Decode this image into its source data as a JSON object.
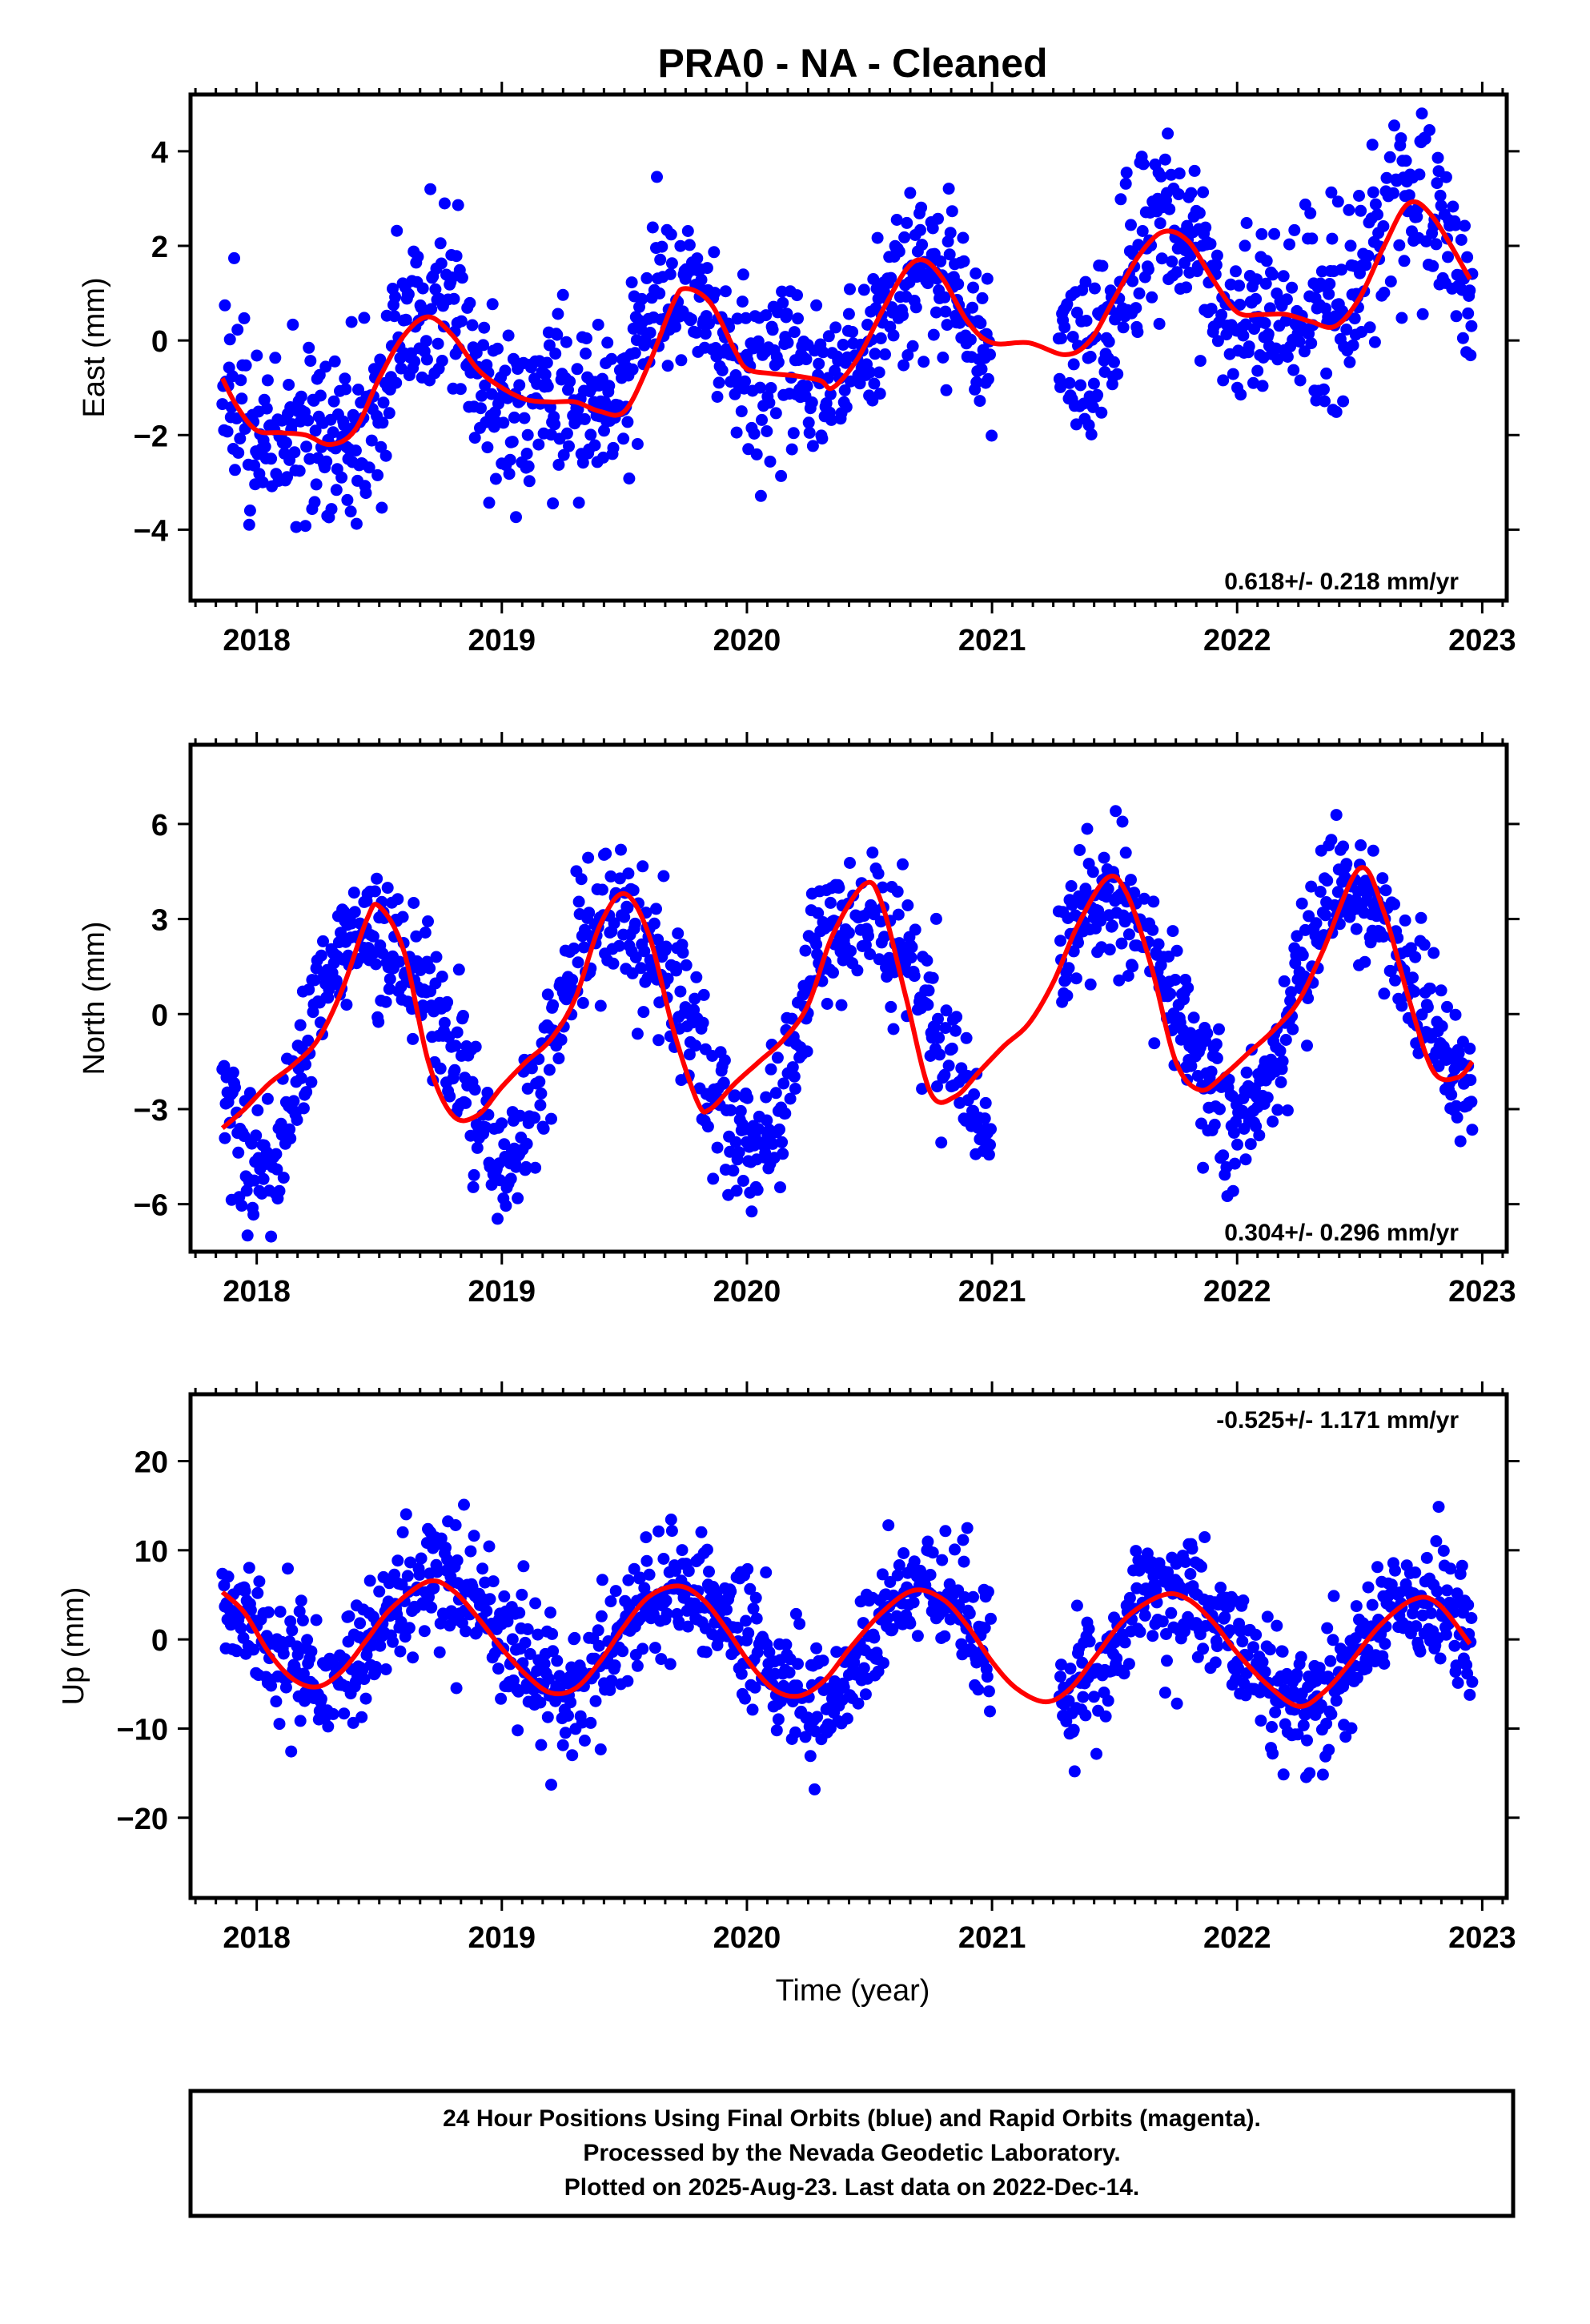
{
  "chart_data": {
    "type": "scatter",
    "title": "PRA0  - NA - Cleaned",
    "x_tick_labels": [
      "2018",
      "2019",
      "2020",
      "2021",
      "2022",
      "2023"
    ],
    "x_ticks": [
      2018,
      2019,
      2020,
      2021,
      2022,
      2023
    ],
    "xlabel": "Time (year)",
    "xlim": [
      2017.73,
      2023.1
    ],
    "data_gap": [
      2021.0,
      2021.27
    ],
    "colors": {
      "points": "#0000ff",
      "fit": "#ff0000",
      "axis": "#000000"
    },
    "panels": [
      {
        "ylabel": "East (mm)",
        "ylim": [
          -5.5,
          5.2
        ],
        "y_ticks": [
          -4,
          -2,
          0,
          2,
          4
        ],
        "y_tick_labels": [
          "−4",
          "−2",
          "0",
          "2",
          "4"
        ],
        "rate": "0.618+/- 0.218 mm/yr",
        "rate_position": "bottom-right",
        "model": {
          "offset": 0.1,
          "trend": 0.618,
          "annual_amp": 1.1,
          "annual_peak": 0.72,
          "semiannual_amp": 0.45,
          "semiannual_peak": 0.2,
          "scatter": 0.95
        },
        "series": [
          {
            "values": [
              [
                2017.86,
                -0.8
              ],
              [
                2017.92,
                -1.4
              ],
              [
                2018.0,
                -1.9
              ],
              [
                2018.1,
                -1.95
              ],
              [
                2018.2,
                -2.0
              ],
              [
                2018.3,
                -2.2
              ],
              [
                2018.4,
                -1.9
              ],
              [
                2018.5,
                -0.8
              ],
              [
                2018.6,
                0.1
              ],
              [
                2018.7,
                0.5
              ],
              [
                2018.8,
                0.1
              ],
              [
                2018.9,
                -0.6
              ],
              [
                2019.0,
                -1.0
              ],
              [
                2019.1,
                -1.25
              ],
              [
                2019.2,
                -1.3
              ],
              [
                2019.3,
                -1.3
              ],
              [
                2019.4,
                -1.5
              ],
              [
                2019.5,
                -1.5
              ],
              [
                2019.6,
                -0.5
              ],
              [
                2019.7,
                0.8
              ],
              [
                2019.75,
                1.1
              ],
              [
                2019.85,
                0.8
              ],
              [
                2019.95,
                -0.2
              ],
              [
                2020.0,
                -0.6
              ],
              [
                2020.1,
                -0.7
              ],
              [
                2020.2,
                -0.75
              ],
              [
                2020.3,
                -0.85
              ],
              [
                2020.35,
                -1.0
              ],
              [
                2020.45,
                -0.4
              ],
              [
                2020.55,
                0.6
              ],
              [
                2020.65,
                1.5
              ],
              [
                2020.72,
                1.7
              ],
              [
                2020.8,
                1.3
              ],
              [
                2020.9,
                0.4
              ],
              [
                2021.0,
                -0.05
              ],
              [
                2021.15,
                -0.05
              ],
              [
                2021.3,
                -0.3
              ],
              [
                2021.4,
                0.0
              ],
              [
                2021.5,
                0.9
              ],
              [
                2021.6,
                1.8
              ],
              [
                2021.7,
                2.3
              ],
              [
                2021.8,
                2.1
              ],
              [
                2021.9,
                1.3
              ],
              [
                2022.0,
                0.6
              ],
              [
                2022.1,
                0.55
              ],
              [
                2022.2,
                0.55
              ],
              [
                2022.3,
                0.4
              ],
              [
                2022.4,
                0.3
              ],
              [
                2022.5,
                0.9
              ],
              [
                2022.6,
                2.0
              ],
              [
                2022.7,
                2.9
              ],
              [
                2022.8,
                2.6
              ],
              [
                2022.95,
                1.3
              ]
            ]
          }
        ]
      },
      {
        "ylabel": "North (mm)",
        "ylim": [
          -7.5,
          8.5
        ],
        "y_ticks": [
          -6,
          -3,
          0,
          3,
          6
        ],
        "y_tick_labels": [
          "−6",
          "−3",
          "0",
          "3",
          "6"
        ],
        "rate": "0.304+/- 0.296 mm/yr",
        "rate_position": "bottom-right",
        "model": {
          "offset": 0.0,
          "trend": 0.304,
          "annual_amp": 3.6,
          "annual_peak": 0.49,
          "semiannual_amp": 0.55,
          "semiannual_peak": 0.3,
          "scatter": 1.05
        },
        "series": [
          {
            "values": [
              [
                2017.86,
                -3.6
              ],
              [
                2017.95,
                -3.0
              ],
              [
                2018.05,
                -2.2
              ],
              [
                2018.15,
                -1.6
              ],
              [
                2018.25,
                -0.8
              ],
              [
                2018.35,
                0.8
              ],
              [
                2018.45,
                3.0
              ],
              [
                2018.5,
                3.4
              ],
              [
                2018.6,
                2.0
              ],
              [
                2018.7,
                -1.5
              ],
              [
                2018.8,
                -3.2
              ],
              [
                2018.9,
                -3.2
              ],
              [
                2019.0,
                -2.3
              ],
              [
                2019.1,
                -1.5
              ],
              [
                2019.2,
                -0.8
              ],
              [
                2019.3,
                0.5
              ],
              [
                2019.4,
                2.8
              ],
              [
                2019.5,
                3.8
              ],
              [
                2019.6,
                2.5
              ],
              [
                2019.7,
                -0.5
              ],
              [
                2019.8,
                -2.8
              ],
              [
                2019.85,
                -3.0
              ],
              [
                2019.95,
                -2.2
              ],
              [
                2020.05,
                -1.5
              ],
              [
                2020.15,
                -0.8
              ],
              [
                2020.25,
                0.3
              ],
              [
                2020.35,
                2.5
              ],
              [
                2020.48,
                4.1
              ],
              [
                2020.55,
                3.5
              ],
              [
                2020.65,
                0.5
              ],
              [
                2020.75,
                -2.5
              ],
              [
                2020.85,
                -2.6
              ],
              [
                2020.95,
                -1.8
              ],
              [
                2021.05,
                -1.0
              ],
              [
                2021.15,
                -0.3
              ],
              [
                2021.25,
                1.0
              ],
              [
                2021.35,
                2.8
              ],
              [
                2021.47,
                4.3
              ],
              [
                2021.55,
                3.8
              ],
              [
                2021.65,
                1.5
              ],
              [
                2021.75,
                -1.5
              ],
              [
                2021.85,
                -2.4
              ],
              [
                2021.95,
                -1.9
              ],
              [
                2022.05,
                -1.2
              ],
              [
                2022.15,
                -0.5
              ],
              [
                2022.25,
                0.4
              ],
              [
                2022.35,
                2.0
              ],
              [
                2022.5,
                4.6
              ],
              [
                2022.6,
                3.2
              ],
              [
                2022.7,
                0.5
              ],
              [
                2022.8,
                -1.8
              ],
              [
                2022.9,
                -2.0
              ],
              [
                2022.96,
                -1.5
              ]
            ]
          }
        ]
      },
      {
        "ylabel": "Up (mm)",
        "ylim": [
          -29,
          27.5
        ],
        "y_ticks": [
          -20,
          -10,
          0,
          10,
          20
        ],
        "y_tick_labels": [
          "−20",
          "−10",
          "0",
          "10",
          "20"
        ],
        "rate": "-0.525+/- 1.171 mm/yr",
        "rate_position": "top-right",
        "model": {
          "offset": -0.3,
          "trend": -0.525,
          "annual_amp": 6.0,
          "annual_peak": 0.74,
          "semiannual_amp": 0.6,
          "semiannual_peak": 0.1,
          "scatter": 3.6
        },
        "series": [
          {
            "values": [
              [
                2017.86,
                5.3
              ],
              [
                2017.95,
                3.0
              ],
              [
                2018.05,
                -1.5
              ],
              [
                2018.15,
                -4.5
              ],
              [
                2018.25,
                -5.3
              ],
              [
                2018.35,
                -3.5
              ],
              [
                2018.45,
                0.0
              ],
              [
                2018.55,
                3.5
              ],
              [
                2018.7,
                6.5
              ],
              [
                2018.8,
                5.5
              ],
              [
                2018.9,
                2.5
              ],
              [
                2019.0,
                -1.0
              ],
              [
                2019.1,
                -4.0
              ],
              [
                2019.2,
                -6.0
              ],
              [
                2019.3,
                -5.5
              ],
              [
                2019.4,
                -2.5
              ],
              [
                2019.5,
                1.5
              ],
              [
                2019.6,
                4.8
              ],
              [
                2019.72,
                6.0
              ],
              [
                2019.82,
                4.5
              ],
              [
                2019.92,
                1.0
              ],
              [
                2020.02,
                -3.0
              ],
              [
                2020.12,
                -5.8
              ],
              [
                2020.22,
                -6.3
              ],
              [
                2020.32,
                -4.5
              ],
              [
                2020.42,
                -1.0
              ],
              [
                2020.55,
                3.0
              ],
              [
                2020.68,
                5.5
              ],
              [
                2020.8,
                4.5
              ],
              [
                2020.9,
                1.5
              ],
              [
                2021.0,
                -2.5
              ],
              [
                2021.1,
                -5.5
              ],
              [
                2021.22,
                -7.0
              ],
              [
                2021.32,
                -5.5
              ],
              [
                2021.42,
                -2.0
              ],
              [
                2021.55,
                2.5
              ],
              [
                2021.7,
                5.0
              ],
              [
                2021.8,
                4.5
              ],
              [
                2021.9,
                2.0
              ],
              [
                2022.0,
                -1.5
              ],
              [
                2022.12,
                -5.0
              ],
              [
                2022.25,
                -7.5
              ],
              [
                2022.35,
                -6.0
              ],
              [
                2022.45,
                -3.0
              ],
              [
                2022.58,
                1.5
              ],
              [
                2022.72,
                4.5
              ],
              [
                2022.82,
                4.0
              ],
              [
                2022.95,
                -0.5
              ]
            ]
          }
        ]
      }
    ]
  },
  "footer": {
    "line1": "24 Hour Positions Using Final Orbits (blue) and Rapid Orbits (magenta).",
    "line2": "Processed by the Nevada Geodetic Laboratory.",
    "line3": "Plotted on 2025-Aug-23. Last data on 2022-Dec-14."
  }
}
